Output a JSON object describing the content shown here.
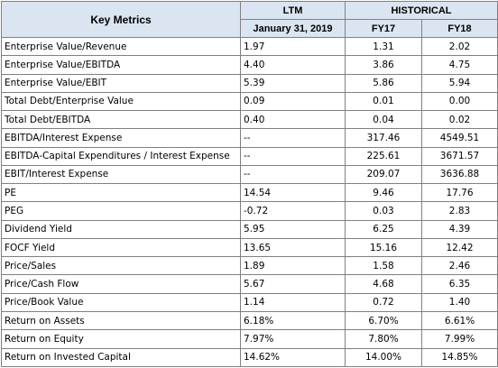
{
  "header": {
    "key_metrics": "Key Metrics",
    "ltm": "LTM",
    "historical": "HISTORICAL",
    "ltm_date": "January 31, 2019",
    "fy17": "FY17",
    "fy18": "FY18"
  },
  "rows": [
    {
      "label": "Enterprise Value/Revenue",
      "ltm": "1.97",
      "fy17": "1.31",
      "fy18": "2.02"
    },
    {
      "label": "Enterprise Value/EBITDA",
      "ltm": "4.40",
      "fy17": "3.86",
      "fy18": "4.75"
    },
    {
      "label": "Enterprise Value/EBIT",
      "ltm": "5.39",
      "fy17": "5.86",
      "fy18": "5.94"
    },
    {
      "label": "Total Debt/Enterprise Value",
      "ltm": "0.09",
      "fy17": "0.01",
      "fy18": "0.00"
    },
    {
      "label": "Total Debt/EBITDA",
      "ltm": "0.40",
      "fy17": "0.04",
      "fy18": "0.02"
    },
    {
      "label": "EBITDA/Interest Expense",
      "ltm": "--",
      "fy17": "317.46",
      "fy18": "4549.51"
    },
    {
      "label": "EBITDA-Capital Expenditures / Interest Expense",
      "ltm": "--",
      "fy17": "225.61",
      "fy18": "3671.57"
    },
    {
      "label": "EBIT/Interest Expense",
      "ltm": "--",
      "fy17": "209.07",
      "fy18": "3636.88"
    },
    {
      "label": "PE",
      "ltm": "14.54",
      "fy17": "9.46",
      "fy18": "17.76"
    },
    {
      "label": "PEG",
      "ltm": "-0.72",
      "fy17": "0.03",
      "fy18": "2.83"
    },
    {
      "label": "Dividend Yield",
      "ltm": "5.95",
      "fy17": "6.25",
      "fy18": "4.39"
    },
    {
      "label": "FOCF Yield",
      "ltm": "13.65",
      "fy17": "15.16",
      "fy18": "12.42"
    },
    {
      "label": "Price/Sales",
      "ltm": "1.89",
      "fy17": "1.58",
      "fy18": "2.46"
    },
    {
      "label": "Price/Cash Flow",
      "ltm": "5.67",
      "fy17": "4.68",
      "fy18": "6.35"
    },
    {
      "label": "Price/Book Value",
      "ltm": "1.14",
      "fy17": "0.72",
      "fy18": "1.40"
    },
    {
      "label": "Return on Assets",
      "ltm": "6.18%",
      "fy17": "6.70%",
      "fy18": "6.61%"
    },
    {
      "label": "Return on Equity",
      "ltm": "7.97%",
      "fy17": "7.80%",
      "fy18": "7.99%"
    },
    {
      "label": "Return on Invested Capital",
      "ltm": "14.62%",
      "fy17": "14.00%",
      "fy18": "14.85%"
    }
  ]
}
